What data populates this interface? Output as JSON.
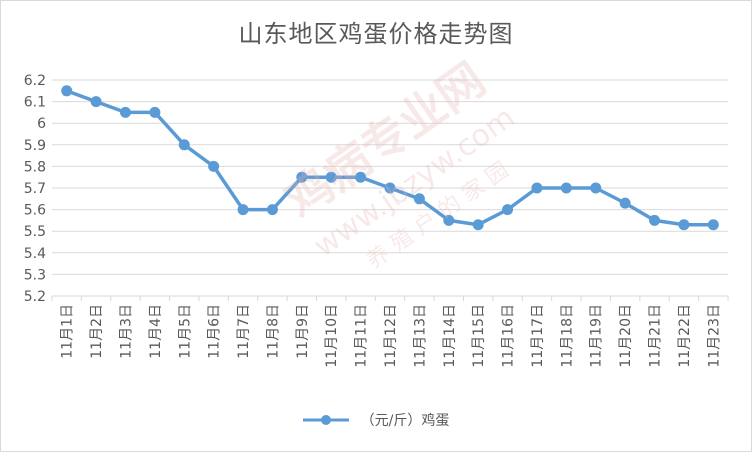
{
  "chart_data": {
    "type": "line",
    "title": "山东地区鸡蛋价格走势图",
    "categories": [
      "11月1日",
      "11月2日",
      "11月3日",
      "11月4日",
      "11月5日",
      "11月6日",
      "11月7日",
      "11月8日",
      "11月9日",
      "11月10日",
      "11月11日",
      "11月12日",
      "11月13日",
      "11月14日",
      "11月15日",
      "11月16日",
      "11月17日",
      "11月18日",
      "11月19日",
      "11月20日",
      "11月21日",
      "11月22日",
      "11月23日"
    ],
    "series": [
      {
        "name": "（元/斤）鸡蛋",
        "color": "#5b9bd5",
        "values": [
          6.15,
          6.1,
          6.05,
          6.05,
          5.9,
          5.8,
          5.6,
          5.6,
          5.75,
          5.75,
          5.75,
          5.7,
          5.65,
          5.55,
          5.53,
          5.6,
          5.7,
          5.7,
          5.7,
          5.63,
          5.55,
          5.53,
          5.53
        ]
      }
    ],
    "ylim": [
      5.2,
      6.2
    ],
    "yticks": [
      "5.2",
      "5.3",
      "5.4",
      "5.5",
      "5.6",
      "5.7",
      "5.8",
      "5.9",
      "6",
      "6.1",
      "6.2"
    ],
    "grid": true,
    "legend": "bottom"
  },
  "watermark": {
    "lines": [
      "鸡病专业网",
      "www.jbzyw.com",
      "养 殖 户 的 家 园"
    ],
    "color": "#e8b4b4"
  }
}
